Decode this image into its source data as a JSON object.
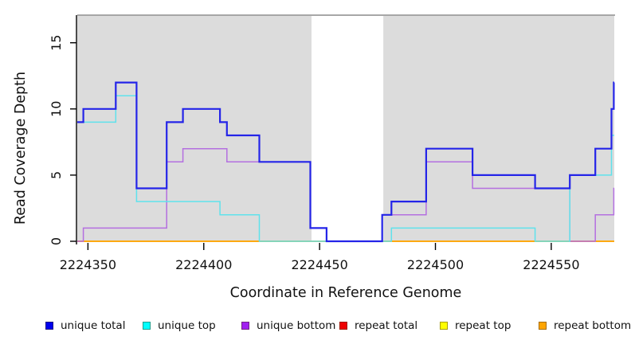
{
  "figure": {
    "xlabel": "Coordinate in Reference Genome",
    "ylabel": "Read Coverage Depth"
  },
  "chart_data": {
    "type": "line",
    "subtype": "step",
    "title": "",
    "xlabel": "Coordinate in Reference Genome",
    "ylabel": "Read Coverage Depth",
    "xlim": [
      2224345,
      2224578
    ],
    "ylim": [
      0,
      17
    ],
    "grid": "off",
    "legend_position": "bottom",
    "x_ticks": [
      2224350,
      2224400,
      2224450,
      2224500,
      2224550
    ],
    "y_ticks": [
      0,
      5,
      10,
      15
    ],
    "plot_background_color": "#DCDCDC",
    "gap_region": {
      "from": 2224446.5,
      "to": 2224477.5,
      "color": "#FFFFFF"
    },
    "border_color": "#909090",
    "series": [
      {
        "name": "repeat total",
        "legend_color": "#EE0000",
        "line_color": "#EE2222",
        "line_width": 1.3,
        "steps": [
          [
            2224345,
            0
          ]
        ],
        "end": 2224578
      },
      {
        "name": "repeat top",
        "legend_color": "#FFFF00",
        "line_color": "#F5E600",
        "line_width": 1.3,
        "steps": [
          [
            2224345,
            0
          ]
        ],
        "end": 2224578
      },
      {
        "name": "repeat bottom",
        "legend_color": "#FFA500",
        "line_color": "#FFA500",
        "line_width": 1.8,
        "steps": [
          [
            2224345,
            0
          ]
        ],
        "end": 2224578
      },
      {
        "name": "unique bottom",
        "legend_color": "#A020F0",
        "line_color": "#B46FE0",
        "line_width": 1.5,
        "steps": [
          [
            2224345,
            0
          ],
          [
            2224348,
            1
          ],
          [
            2224384,
            6
          ],
          [
            2224391,
            7
          ],
          [
            2224410,
            6
          ],
          [
            2224446,
            1
          ],
          [
            2224453,
            0
          ],
          [
            2224477,
            2
          ],
          [
            2224496,
            6
          ],
          [
            2224516,
            4
          ],
          [
            2224558,
            0
          ],
          [
            2224569,
            2
          ],
          [
            2224577,
            4
          ]
        ],
        "end": 2224578
      },
      {
        "name": "unique top",
        "legend_color": "#00FFFF",
        "line_color": "#5FE2EC",
        "line_width": 1.5,
        "steps": [
          [
            2224345,
            9
          ],
          [
            2224362,
            11
          ],
          [
            2224371,
            3
          ],
          [
            2224407,
            2
          ],
          [
            2224424,
            0
          ],
          [
            2224481,
            1
          ],
          [
            2224543,
            0
          ],
          [
            2224558,
            5
          ],
          [
            2224576,
            8
          ]
        ],
        "end": 2224578
      },
      {
        "name": "unique total",
        "legend_color": "#0000EE",
        "line_color": "#2424E8",
        "line_width": 2.2,
        "steps": [
          [
            2224345,
            9
          ],
          [
            2224348,
            10
          ],
          [
            2224362,
            12
          ],
          [
            2224371,
            4
          ],
          [
            2224384,
            9
          ],
          [
            2224391,
            10
          ],
          [
            2224407,
            9
          ],
          [
            2224410,
            8
          ],
          [
            2224424,
            6
          ],
          [
            2224446,
            1
          ],
          [
            2224453,
            0
          ],
          [
            2224477,
            2
          ],
          [
            2224481,
            3
          ],
          [
            2224496,
            7
          ],
          [
            2224516,
            5
          ],
          [
            2224543,
            4
          ],
          [
            2224558,
            5
          ],
          [
            2224569,
            7
          ],
          [
            2224576,
            10
          ],
          [
            2224577,
            12
          ]
        ],
        "end": 2224578
      }
    ],
    "legend": [
      {
        "label": "unique total",
        "color": "#0000EE"
      },
      {
        "label": "unique top",
        "color": "#00FFFF"
      },
      {
        "label": "unique bottom",
        "color": "#A020F0"
      },
      {
        "label": "repeat total",
        "color": "#EE0000"
      },
      {
        "label": "repeat top",
        "color": "#FFFF00"
      },
      {
        "label": "repeat bottom",
        "color": "#FFA500"
      }
    ]
  }
}
